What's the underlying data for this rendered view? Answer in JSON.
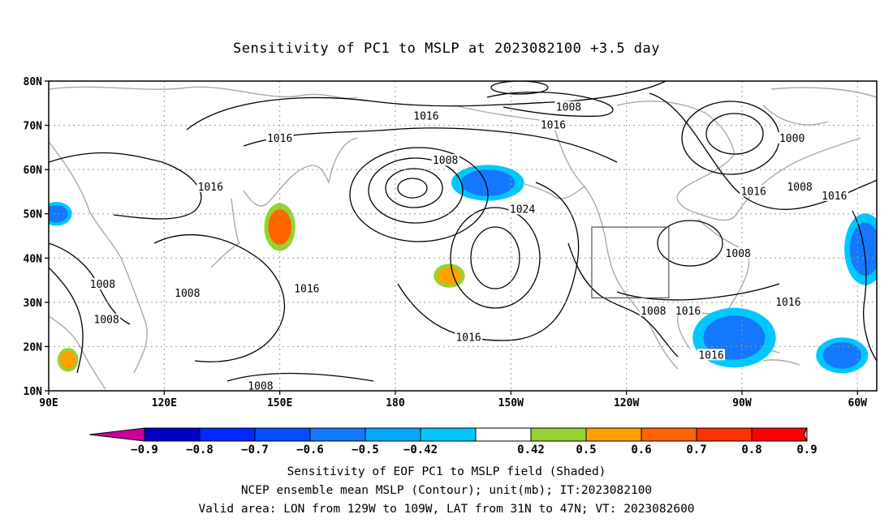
{
  "title": "Sensitivity of PC1 to MSLP at 2023082100 +3.5 day",
  "map": {
    "lon_range": [
      90,
      305
    ],
    "lat_range": [
      10,
      80
    ],
    "lat_ticks": [
      {
        "lat": 80,
        "label": "80N"
      },
      {
        "lat": 70,
        "label": "70N"
      },
      {
        "lat": 60,
        "label": "60N"
      },
      {
        "lat": 50,
        "label": "50N"
      },
      {
        "lat": 40,
        "label": "40N"
      },
      {
        "lat": 30,
        "label": "30N"
      },
      {
        "lat": 20,
        "label": "20N"
      },
      {
        "lat": 10,
        "label": "10N"
      }
    ],
    "lon_ticks": [
      {
        "lon": 90,
        "label": "90E"
      },
      {
        "lon": 120,
        "label": "120E"
      },
      {
        "lon": 150,
        "label": "150E"
      },
      {
        "lon": 180,
        "label": "180"
      },
      {
        "lon": 210,
        "label": "150W"
      },
      {
        "lon": 240,
        "label": "120W"
      },
      {
        "lon": 270,
        "label": "90W"
      },
      {
        "lon": 300,
        "label": "60W"
      }
    ],
    "grid": true,
    "valid_box": {
      "lon_min": 231,
      "lon_max": 251,
      "lat_min": 31,
      "lat_max": 47
    },
    "contour_labels": [
      {
        "text": "1008",
        "lon": 225,
        "lat": 74
      },
      {
        "text": "1016",
        "lon": 188,
        "lat": 72
      },
      {
        "text": "1016",
        "lon": 221,
        "lat": 70
      },
      {
        "text": "1016",
        "lon": 150,
        "lat": 67
      },
      {
        "text": "1000",
        "lon": 283,
        "lat": 67
      },
      {
        "text": "1008",
        "lon": 193,
        "lat": 62
      },
      {
        "text": "1016",
        "lon": 132,
        "lat": 56
      },
      {
        "text": "1016",
        "lon": 273,
        "lat": 55
      },
      {
        "text": "1008",
        "lon": 285,
        "lat": 56
      },
      {
        "text": "1016",
        "lon": 294,
        "lat": 54
      },
      {
        "text": "1024",
        "lon": 213,
        "lat": 51
      },
      {
        "text": "1008",
        "lon": 269,
        "lat": 41
      },
      {
        "text": "1008",
        "lon": 104,
        "lat": 34
      },
      {
        "text": "1008",
        "lon": 126,
        "lat": 32
      },
      {
        "text": "1016",
        "lon": 157,
        "lat": 33
      },
      {
        "text": "1008",
        "lon": 105,
        "lat": 26
      },
      {
        "text": "1008",
        "lon": 247,
        "lat": 28
      },
      {
        "text": "1016",
        "lon": 256,
        "lat": 28
      },
      {
        "text": "1016",
        "lon": 282,
        "lat": 30
      },
      {
        "text": "1016",
        "lon": 199,
        "lat": 22
      },
      {
        "text": "1016",
        "lon": 262,
        "lat": 18
      },
      {
        "text": "1008",
        "lon": 145,
        "lat": 11
      }
    ],
    "shaded_areas": [
      {
        "lon": 204,
        "lat": 57,
        "rlon": 7,
        "rlat": 3,
        "level": -0.6
      },
      {
        "lon": 268,
        "lat": 22,
        "rlon": 8,
        "rlat": 5,
        "level": -0.6
      },
      {
        "lon": 296,
        "lat": 18,
        "rlon": 5,
        "rlat": 3,
        "level": -0.6
      },
      {
        "lon": 302,
        "lat": 42,
        "rlon": 4,
        "rlat": 6,
        "level": -0.6
      },
      {
        "lon": 92,
        "lat": 50,
        "rlon": 3,
        "rlat": 2,
        "level": -0.6
      },
      {
        "lon": 150,
        "lat": 47,
        "rlon": 3,
        "rlat": 4,
        "level": 0.7
      },
      {
        "lon": 95,
        "lat": 17,
        "rlon": 2,
        "rlat": 2,
        "level": 0.6
      },
      {
        "lon": 194,
        "lat": 36,
        "rlon": 3,
        "rlat": 2,
        "level": 0.6
      }
    ]
  },
  "colorbar": {
    "colors": [
      "#0000c8",
      "#0028ff",
      "#0050ff",
      "#1478ff",
      "#00aaff",
      "#00c8ff",
      "#ffffff",
      "#96d232",
      "#ffa000",
      "#ff6400",
      "#ff3200",
      "#ff0000"
    ],
    "under_color": "#c8009b",
    "over_color": "#ff96c8",
    "labels": [
      "−0.9",
      "−0.8",
      "−0.7",
      "−0.6",
      "−0.5",
      "−0.42",
      "0.42",
      "0.5",
      "0.6",
      "0.7",
      "0.8",
      "0.9"
    ]
  },
  "captions": {
    "line1": "Sensitivity of EOF PC1 to MSLP field (Shaded)",
    "line2": "NCEP ensemble mean MSLP (Contour); unit(mb); IT:2023082100",
    "line3": "Valid area: LON from 129W to 109W, LAT from 31N to 47N; VT: 2023082600"
  }
}
